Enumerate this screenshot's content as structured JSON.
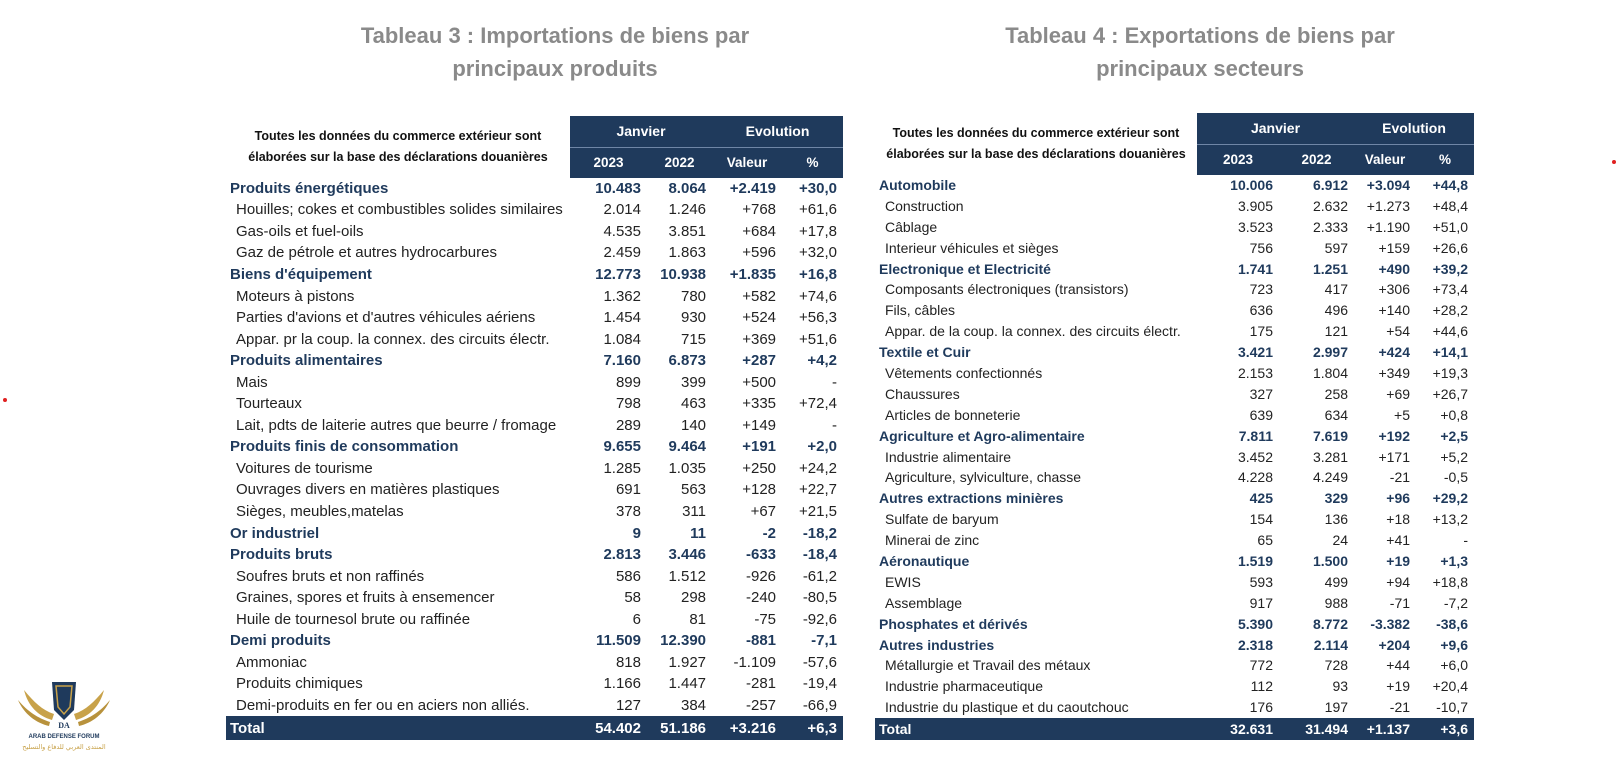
{
  "table3": {
    "title_line1": "Tableau 3 : Importations de biens par",
    "title_line2": "principaux produits",
    "note_line1": "Toutes les données du commerce extérieur sont",
    "note_line2": "élaborées sur la base des déclarations douanières",
    "col_janvier": "Janvier",
    "col_evolution": "Evolution",
    "col_2023": "2023",
    "col_2022": "2022",
    "col_valeur": "Valeur",
    "col_pct": "%",
    "rows": [
      {
        "type": "cat",
        "label": "Produits énergétiques",
        "v2023": "10.483",
        "v2022": "8.064",
        "val": "+2.419",
        "pct": "+30,0"
      },
      {
        "type": "sub",
        "label": "Houilles; cokes et combustibles solides similaires",
        "v2023": "2.014",
        "v2022": "1.246",
        "val": "+768",
        "pct": "+61,6"
      },
      {
        "type": "sub",
        "label": "Gas-oils et fuel-oils",
        "v2023": "4.535",
        "v2022": "3.851",
        "val": "+684",
        "pct": "+17,8"
      },
      {
        "type": "sub",
        "label": "Gaz de pétrole et autres hydrocarbures",
        "v2023": "2.459",
        "v2022": "1.863",
        "val": "+596",
        "pct": "+32,0"
      },
      {
        "type": "cat",
        "label": "Biens d'équipement",
        "v2023": "12.773",
        "v2022": "10.938",
        "val": "+1.835",
        "pct": "+16,8"
      },
      {
        "type": "sub",
        "label": "Moteurs à pistons",
        "v2023": "1.362",
        "v2022": "780",
        "val": "+582",
        "pct": "+74,6"
      },
      {
        "type": "sub",
        "label": "Parties d'avions et d'autres véhicules aériens",
        "v2023": "1.454",
        "v2022": "930",
        "val": "+524",
        "pct": "+56,3"
      },
      {
        "type": "sub",
        "label": "Appar. pr la coup. la connex. des circuits électr.",
        "v2023": "1.084",
        "v2022": "715",
        "val": "+369",
        "pct": "+51,6"
      },
      {
        "type": "cat",
        "label": "Produits alimentaires",
        "v2023": "7.160",
        "v2022": "6.873",
        "val": "+287",
        "pct": "+4,2"
      },
      {
        "type": "sub",
        "label": "Mais",
        "v2023": "899",
        "v2022": "399",
        "val": "+500",
        "pct": "-"
      },
      {
        "type": "sub",
        "label": "Tourteaux",
        "v2023": "798",
        "v2022": "463",
        "val": "+335",
        "pct": "+72,4"
      },
      {
        "type": "sub",
        "label": "Lait, pdts de laiterie autres que beurre / fromage",
        "v2023": "289",
        "v2022": "140",
        "val": "+149",
        "pct": "-"
      },
      {
        "type": "cat",
        "label": "Produits finis de consommation",
        "v2023": "9.655",
        "v2022": "9.464",
        "val": "+191",
        "pct": "+2,0"
      },
      {
        "type": "sub",
        "label": "Voitures de tourisme",
        "v2023": "1.285",
        "v2022": "1.035",
        "val": "+250",
        "pct": "+24,2"
      },
      {
        "type": "sub",
        "label": "Ouvrages divers en matières plastiques",
        "v2023": "691",
        "v2022": "563",
        "val": "+128",
        "pct": "+22,7"
      },
      {
        "type": "sub",
        "label": "Sièges, meubles,matelas",
        "v2023": "378",
        "v2022": "311",
        "val": "+67",
        "pct": "+21,5"
      },
      {
        "type": "cat",
        "label": "Or industriel",
        "v2023": "9",
        "v2022": "11",
        "val": "-2",
        "pct": "-18,2"
      },
      {
        "type": "cat",
        "label": "Produits bruts",
        "v2023": "2.813",
        "v2022": "3.446",
        "val": "-633",
        "pct": "-18,4"
      },
      {
        "type": "sub",
        "label": "Soufres bruts et non raffinés",
        "v2023": "586",
        "v2022": "1.512",
        "val": "-926",
        "pct": "-61,2"
      },
      {
        "type": "sub",
        "label": "Graines, spores et fruits à ensemencer",
        "v2023": "58",
        "v2022": "298",
        "val": "-240",
        "pct": "-80,5"
      },
      {
        "type": "sub",
        "label": "Huile de tournesol brute ou raffinée",
        "v2023": "6",
        "v2022": "81",
        "val": "-75",
        "pct": "-92,6"
      },
      {
        "type": "cat",
        "label": "Demi produits",
        "v2023": "11.509",
        "v2022": "12.390",
        "val": "-881",
        "pct": "-7,1"
      },
      {
        "type": "sub",
        "label": "Ammoniac",
        "v2023": "818",
        "v2022": "1.927",
        "val": "-1.109",
        "pct": "-57,6"
      },
      {
        "type": "sub",
        "label": "Produits chimiques",
        "v2023": "1.166",
        "v2022": "1.447",
        "val": "-281",
        "pct": "-19,4"
      },
      {
        "type": "sub",
        "label": "Demi-produits en fer ou en aciers non alliés.",
        "v2023": "127",
        "v2022": "384",
        "val": "-257",
        "pct": "-66,9"
      }
    ],
    "total": {
      "label": "Total",
      "v2023": "54.402",
      "v2022": "51.186",
      "val": "+3.216",
      "pct": "+6,3"
    }
  },
  "table4": {
    "title_line1": "Tableau 4 : Exportations de biens par",
    "title_line2": "principaux secteurs",
    "note_line1": "Toutes les données du commerce extérieur sont",
    "note_line2": "élaborées sur la base des déclarations douanières",
    "col_janvier": "Janvier",
    "col_evolution": "Evolution",
    "col_2023": "2023",
    "col_2022": "2022",
    "col_valeur": "Valeur",
    "col_pct": "%",
    "rows": [
      {
        "type": "cat",
        "label": "Automobile",
        "v2023": "10.006",
        "v2022": "6.912",
        "val": "+3.094",
        "pct": "+44,8"
      },
      {
        "type": "sub",
        "label": "Construction",
        "v2023": "3.905",
        "v2022": "2.632",
        "val": "+1.273",
        "pct": "+48,4"
      },
      {
        "type": "sub",
        "label": "Câblage",
        "v2023": "3.523",
        "v2022": "2.333",
        "val": "+1.190",
        "pct": "+51,0"
      },
      {
        "type": "sub",
        "label": "Interieur véhicules et sièges",
        "v2023": "756",
        "v2022": "597",
        "val": "+159",
        "pct": "+26,6"
      },
      {
        "type": "cat",
        "label": "Electronique et Electricité",
        "v2023": "1.741",
        "v2022": "1.251",
        "val": "+490",
        "pct": "+39,2"
      },
      {
        "type": "sub",
        "label": "Composants électroniques (transistors)",
        "v2023": "723",
        "v2022": "417",
        "val": "+306",
        "pct": "+73,4"
      },
      {
        "type": "sub",
        "label": "Fils, câbles",
        "v2023": "636",
        "v2022": "496",
        "val": "+140",
        "pct": "+28,2"
      },
      {
        "type": "sub",
        "label": "Appar. de la coup. la connex. des circuits électr.",
        "v2023": "175",
        "v2022": "121",
        "val": "+54",
        "pct": "+44,6"
      },
      {
        "type": "cat",
        "label": "Textile et Cuir",
        "v2023": "3.421",
        "v2022": "2.997",
        "val": "+424",
        "pct": "+14,1"
      },
      {
        "type": "sub",
        "label": "Vêtements confectionnés",
        "v2023": "2.153",
        "v2022": "1.804",
        "val": "+349",
        "pct": "+19,3"
      },
      {
        "type": "sub",
        "label": "Chaussures",
        "v2023": "327",
        "v2022": "258",
        "val": "+69",
        "pct": "+26,7"
      },
      {
        "type": "sub",
        "label": "Articles de bonneterie",
        "v2023": "639",
        "v2022": "634",
        "val": "+5",
        "pct": "+0,8"
      },
      {
        "type": "cat",
        "label": "Agriculture et Agro-alimentaire",
        "v2023": "7.811",
        "v2022": "7.619",
        "val": "+192",
        "pct": "+2,5"
      },
      {
        "type": "sub",
        "label": "Industrie alimentaire",
        "v2023": "3.452",
        "v2022": "3.281",
        "val": "+171",
        "pct": "+5,2"
      },
      {
        "type": "sub",
        "label": "Agriculture, sylviculture, chasse",
        "v2023": "4.228",
        "v2022": "4.249",
        "val": "-21",
        "pct": "-0,5"
      },
      {
        "type": "cat",
        "label": "Autres extractions minières",
        "v2023": "425",
        "v2022": "329",
        "val": "+96",
        "pct": "+29,2"
      },
      {
        "type": "sub",
        "label": "Sulfate de baryum",
        "v2023": "154",
        "v2022": "136",
        "val": "+18",
        "pct": "+13,2"
      },
      {
        "type": "sub",
        "label": "Minerai de zinc",
        "v2023": "65",
        "v2022": "24",
        "val": "+41",
        "pct": "-"
      },
      {
        "type": "cat",
        "label": "Aéronautique",
        "v2023": "1.519",
        "v2022": "1.500",
        "val": "+19",
        "pct": "+1,3"
      },
      {
        "type": "sub",
        "label": "EWIS",
        "v2023": "593",
        "v2022": "499",
        "val": "+94",
        "pct": "+18,8"
      },
      {
        "type": "sub",
        "label": "Assemblage",
        "v2023": "917",
        "v2022": "988",
        "val": "-71",
        "pct": "-7,2"
      },
      {
        "type": "cat",
        "label": "Phosphates et dérivés",
        "v2023": "5.390",
        "v2022": "8.772",
        "val": "-3.382",
        "pct": "-38,6"
      },
      {
        "type": "cat",
        "label": "Autres industries",
        "v2023": "2.318",
        "v2022": "2.114",
        "val": "+204",
        "pct": "+9,6"
      },
      {
        "type": "sub",
        "label": "Métallurgie et Travail des métaux",
        "v2023": "772",
        "v2022": "728",
        "val": "+44",
        "pct": "+6,0"
      },
      {
        "type": "sub",
        "label": "Industrie pharmaceutique",
        "v2023": "112",
        "v2022": "93",
        "val": "+19",
        "pct": "+20,4"
      },
      {
        "type": "sub",
        "label": "Industrie du plastique et du caoutchouc",
        "v2023": "176",
        "v2022": "197",
        "val": "-21",
        "pct": "-10,7"
      }
    ],
    "total": {
      "label": "Total",
      "v2023": "32.631",
      "v2022": "31.494",
      "val": "+1.137",
      "pct": "+3,6"
    }
  },
  "logo": {
    "text_en": "ARAB DEFENSE FORUM",
    "text_ar": "المنتدى العربي للدفاع والتسليح",
    "initials": "DA",
    "gold": "#c8a24a",
    "navy": "#1f3a5c"
  }
}
